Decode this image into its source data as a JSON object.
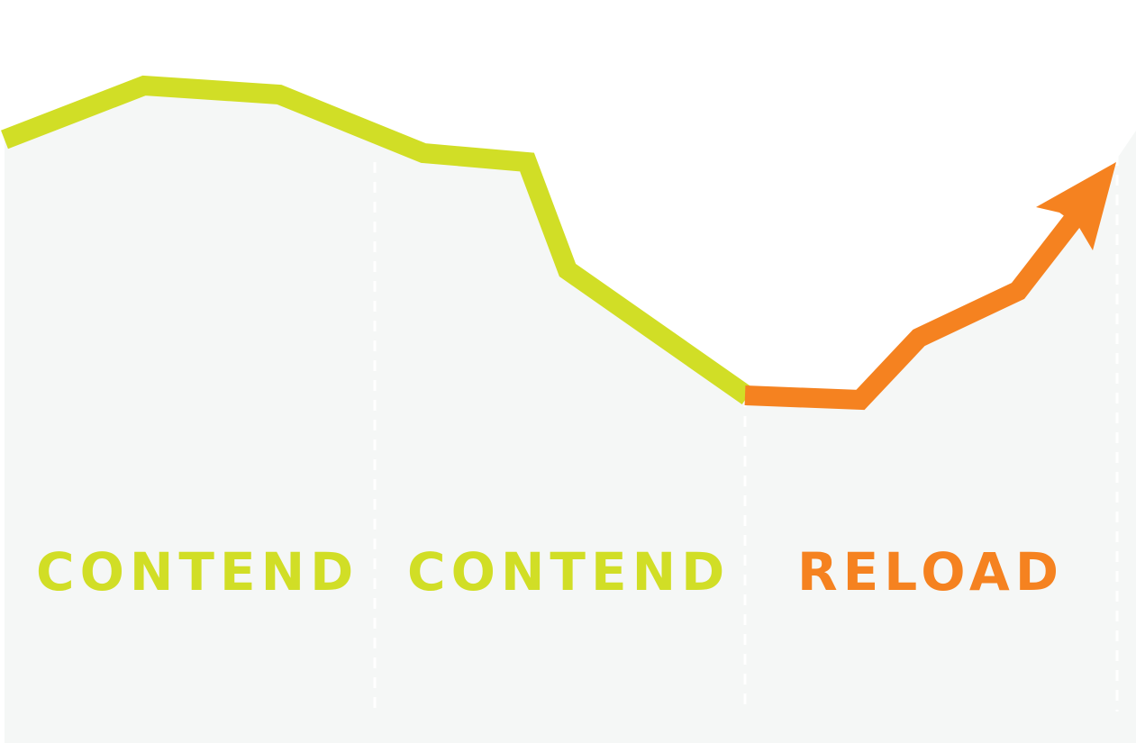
{
  "colors": {
    "background": "#ffffff",
    "area": "#f5f7f6",
    "divider": "#ffffff",
    "phase_1": "#d1de26",
    "phase_2": "#d1de26",
    "phase_3": "#f58220"
  },
  "phases": [
    {
      "label": "CONTEND",
      "color": "#d1de26"
    },
    {
      "label": "CONTEND",
      "color": "#d1de26"
    },
    {
      "label": "RELOAD",
      "color": "#f58220"
    }
  ],
  "trend": {
    "end_marker": "arrow-head-icon",
    "segments": [
      {
        "phase": 1,
        "color": "#d1de26"
      },
      {
        "phase": 2,
        "color": "#d1de26"
      },
      {
        "phase": 3,
        "color": "#f58220"
      }
    ]
  }
}
